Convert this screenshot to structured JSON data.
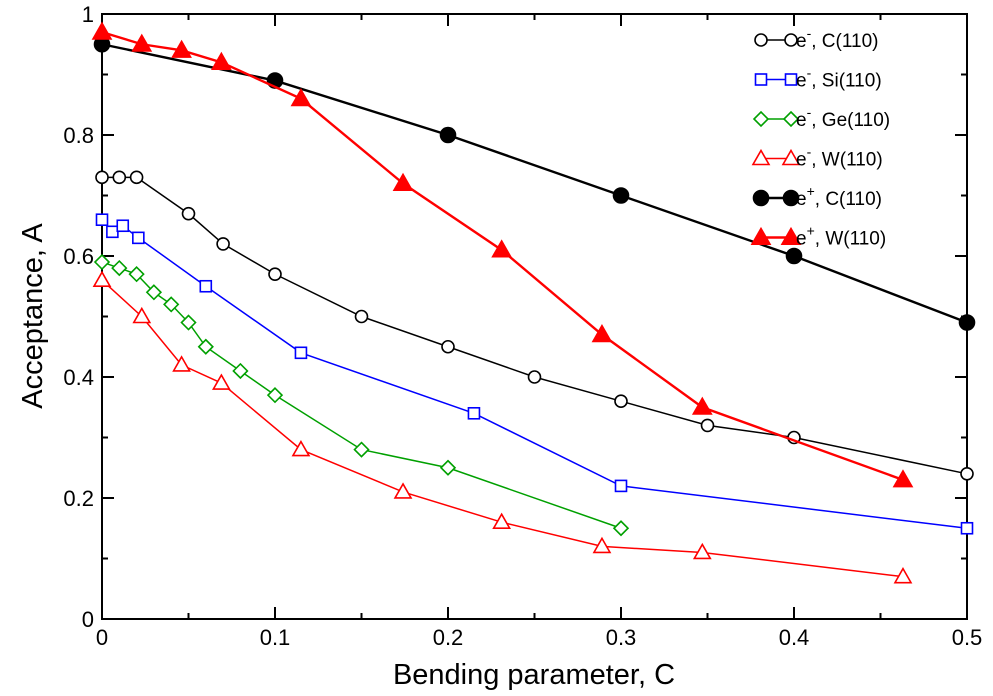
{
  "chart_data": {
    "type": "line",
    "xlabel": "Bending parameter, C",
    "ylabel": "Acceptance, A",
    "xlim": [
      0,
      0.5
    ],
    "ylim": [
      0,
      1
    ],
    "xticks": [
      0,
      0.1,
      0.2,
      0.3,
      0.4,
      0.5
    ],
    "xtick_labels": [
      "0",
      "0.1",
      "0.2",
      "0.3",
      "0.4",
      "0.5"
    ],
    "yticks": [
      0,
      0.2,
      0.4,
      0.6,
      0.8,
      1
    ],
    "ytick_labels": [
      "0",
      "0.2",
      "0.4",
      "0.6",
      "0.8",
      "1"
    ],
    "grid": false,
    "legend_position": "top-right",
    "series": [
      {
        "name": "e⁻, C(110)",
        "particle": "e",
        "charge": "-",
        "crystal": ", C(110)",
        "color": "#000000",
        "marker": "circle",
        "filled": false,
        "x": [
          0,
          0.01,
          0.02,
          0.05,
          0.07,
          0.1,
          0.15,
          0.2,
          0.25,
          0.3,
          0.35,
          0.4,
          0.5
        ],
        "y": [
          0.73,
          0.73,
          0.73,
          0.67,
          0.62,
          0.57,
          0.5,
          0.45,
          0.4,
          0.36,
          0.32,
          0.3,
          0.24
        ]
      },
      {
        "name": "e⁻, Si(110)",
        "particle": "e",
        "charge": "-",
        "crystal": ", Si(110)",
        "color": "#0000ff",
        "marker": "square",
        "filled": false,
        "x": [
          0,
          0.006,
          0.012,
          0.021,
          0.06,
          0.115,
          0.215,
          0.3,
          0.5
        ],
        "y": [
          0.66,
          0.64,
          0.65,
          0.63,
          0.55,
          0.44,
          0.34,
          0.22,
          0.15
        ]
      },
      {
        "name": "e⁻, Ge(110)",
        "particle": "e",
        "charge": "-",
        "crystal": ", Ge(110)",
        "color": "#00a000",
        "marker": "diamond",
        "filled": false,
        "x": [
          0,
          0.01,
          0.02,
          0.03,
          0.04,
          0.05,
          0.06,
          0.08,
          0.1,
          0.15,
          0.2,
          0.3
        ],
        "y": [
          0.59,
          0.58,
          0.57,
          0.54,
          0.52,
          0.49,
          0.45,
          0.41,
          0.37,
          0.28,
          0.25,
          0.15
        ]
      },
      {
        "name": "e⁻, W(110)",
        "particle": "e",
        "charge": "-",
        "crystal": ", W(110)",
        "color": "#ff0000",
        "marker": "triangle",
        "filled": false,
        "x": [
          0,
          0.023,
          0.046,
          0.069,
          0.115,
          0.174,
          0.231,
          0.289,
          0.347,
          0.463
        ],
        "y": [
          0.56,
          0.5,
          0.42,
          0.39,
          0.28,
          0.21,
          0.16,
          0.12,
          0.11,
          0.07
        ]
      },
      {
        "name": "e⁺, C(110)",
        "particle": "e",
        "charge": "+",
        "crystal": ", C(110)",
        "color": "#000000",
        "marker": "circle",
        "filled": true,
        "x": [
          0,
          0.1,
          0.2,
          0.3,
          0.4,
          0.5
        ],
        "y": [
          0.95,
          0.89,
          0.8,
          0.7,
          0.6,
          0.49
        ]
      },
      {
        "name": "e⁺, W(110)",
        "particle": "e",
        "charge": "+",
        "crystal": ", W(110)",
        "color": "#ff0000",
        "marker": "triangle",
        "filled": true,
        "x": [
          0,
          0.023,
          0.046,
          0.069,
          0.115,
          0.174,
          0.231,
          0.289,
          0.347,
          0.463
        ],
        "y": [
          0.97,
          0.95,
          0.94,
          0.92,
          0.86,
          0.72,
          0.61,
          0.47,
          0.35,
          0.23
        ]
      }
    ]
  }
}
